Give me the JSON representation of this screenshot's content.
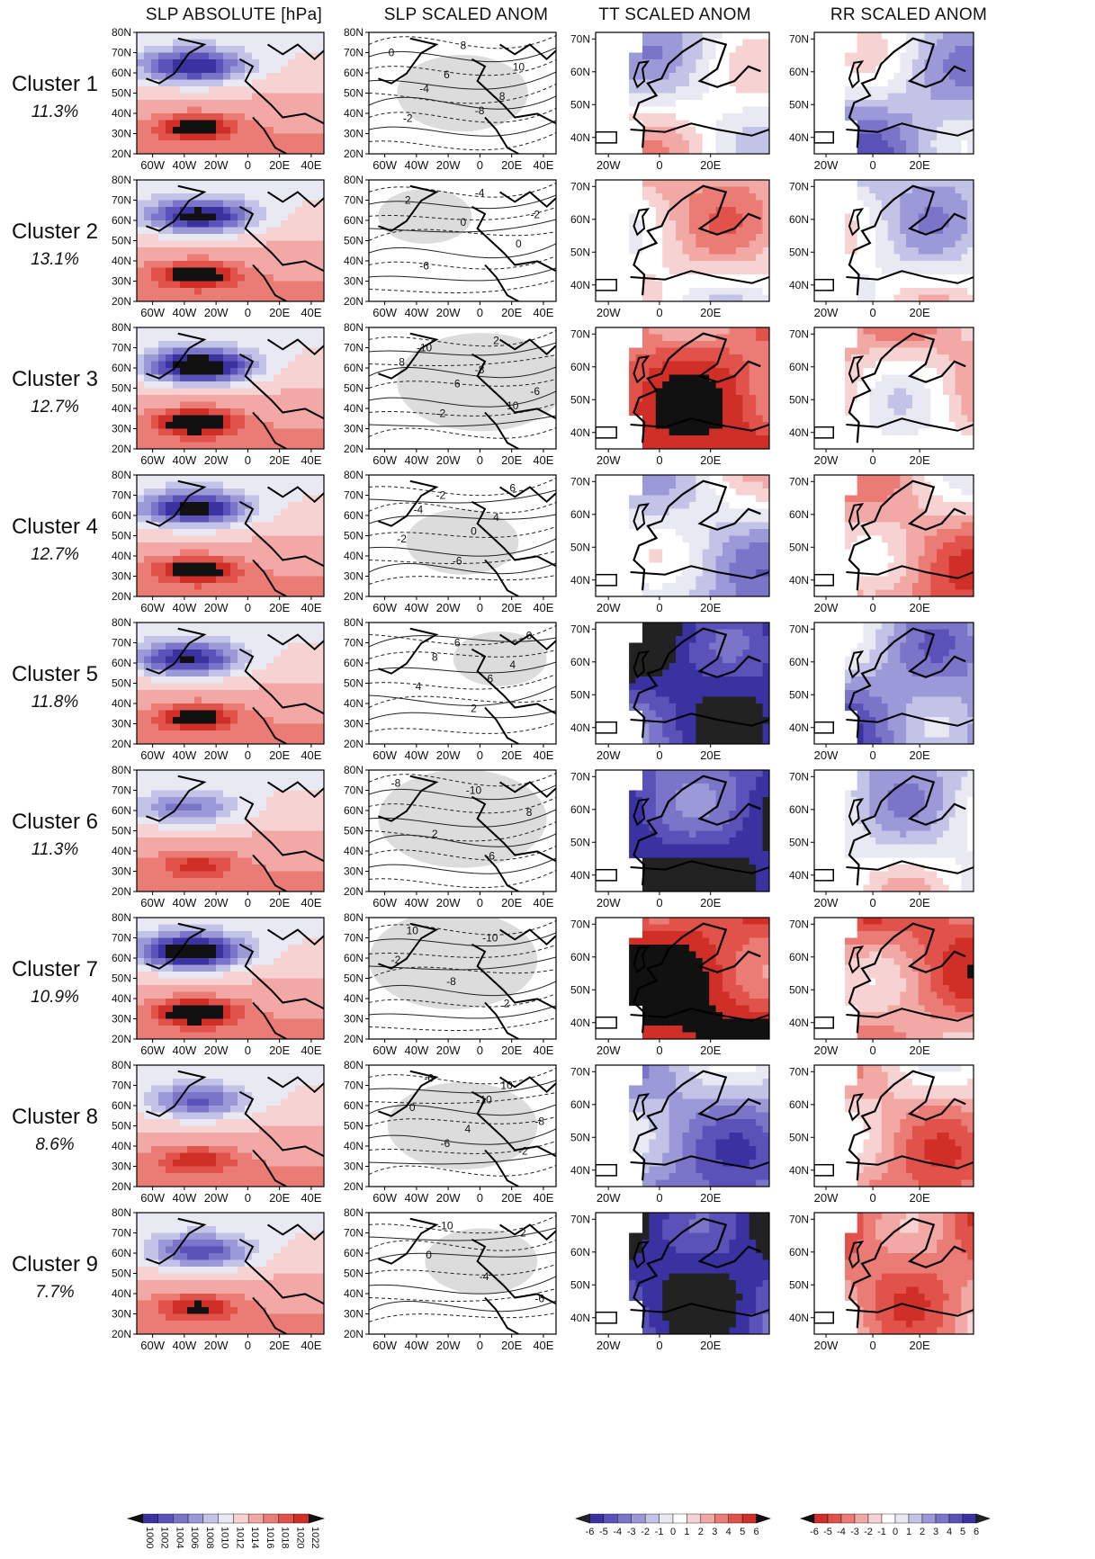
{
  "columns": [
    {
      "id": "slp",
      "header": "SLP ABSOLUTE [hPa]"
    },
    {
      "id": "slpa",
      "header": "SLP SCALED ANOM"
    },
    {
      "id": "tt",
      "header": "TT SCALED ANOM"
    },
    {
      "id": "rr",
      "header": "RR SCALED ANOM"
    }
  ],
  "clusters": [
    {
      "name": "Cluster 1",
      "freq": "11.3%"
    },
    {
      "name": "Cluster 2",
      "freq": "13.1%"
    },
    {
      "name": "Cluster 3",
      "freq": "12.7%"
    },
    {
      "name": "Cluster 4",
      "freq": "12.7%"
    },
    {
      "name": "Cluster 5",
      "freq": "11.8%"
    },
    {
      "name": "Cluster 6",
      "freq": "11.3%"
    },
    {
      "name": "Cluster 7",
      "freq": "10.9%"
    },
    {
      "name": "Cluster 8",
      "freq": "8.6%"
    },
    {
      "name": "Cluster 9",
      "freq": "7.7%"
    }
  ],
  "chart_data": [
    {
      "type": "heatmap",
      "panel": "slp",
      "xticks": [
        "60W",
        "40W",
        "20W",
        "0",
        "20E",
        "40E"
      ],
      "yticks": [
        "20N",
        "30N",
        "40N",
        "50N",
        "60N",
        "70N",
        "80N"
      ],
      "xlim": [
        -70,
        48
      ],
      "ylim": [
        20,
        80
      ],
      "colorbar": {
        "ticks": [
          "1000",
          "1002",
          "1004",
          "1006",
          "1008",
          "1010",
          "1012",
          "1014",
          "1016",
          "1018",
          "1020",
          "1022"
        ],
        "colors": [
          "#111111",
          "#3a32a0",
          "#5a52b8",
          "#7a75c8",
          "#9b99d8",
          "#c2c3e6",
          "#e9e9f3",
          "#f7d2d2",
          "#f2a9a6",
          "#ea7c75",
          "#e0524a",
          "#cf2f27",
          "#111111"
        ]
      }
    },
    {
      "type": "contour",
      "panel": "slpa",
      "xticks": [
        "60W",
        "40W",
        "20W",
        "0",
        "20E",
        "40E"
      ],
      "yticks": [
        "20N",
        "30N",
        "40N",
        "50N",
        "60N",
        "70N",
        "80N"
      ],
      "xlim": [
        -70,
        48
      ],
      "ylim": [
        20,
        80
      ],
      "labels": [
        [
          "0",
          "6",
          "8",
          "-2",
          "8",
          "10",
          "-4",
          "-8"
        ],
        [
          "2",
          "0",
          "0",
          "-6",
          "-4",
          "-2"
        ],
        [
          "-10",
          "-8",
          "-6",
          "-2",
          "2",
          "8",
          "6",
          "10"
        ],
        [
          "-2",
          "4",
          "-2",
          "-6",
          "6",
          "-4",
          "0"
        ],
        [
          "6",
          "4",
          "4",
          "2",
          "0",
          "8",
          "6"
        ],
        [
          "-10",
          "8",
          "2",
          "-6",
          "-8"
        ],
        [
          "-10",
          "-2",
          "-8",
          "2",
          "10"
        ],
        [
          "10",
          "0",
          "4",
          "-2",
          "-6",
          "-10",
          "-8",
          "-6"
        ],
        [
          "2",
          "0",
          "-4",
          "-6",
          "-10"
        ]
      ]
    },
    {
      "type": "heatmap",
      "panel": "tt",
      "xticks": [
        "20W",
        "0",
        "20E"
      ],
      "yticks": [
        "40N",
        "50N",
        "60N",
        "70N"
      ],
      "xlim": [
        -25,
        43
      ],
      "ylim": [
        35,
        72
      ],
      "values": [
        0.5,
        2,
        5,
        -0.5,
        -5,
        -5,
        6,
        -2,
        -5
      ],
      "colorbar": {
        "ticks": [
          "-6",
          "-5",
          "-4",
          "-3",
          "-2",
          "-1",
          "0",
          "1",
          "2",
          "3",
          "4",
          "5",
          "6"
        ],
        "colors": [
          "#222222",
          "#3a32a0",
          "#5a52b8",
          "#7a75c8",
          "#9b99d8",
          "#c2c3e6",
          "#e9e9f3",
          "#ffffff",
          "#f7d2d2",
          "#f2a9a6",
          "#ea7c75",
          "#e0524a",
          "#cf2f27",
          "#111111"
        ]
      }
    },
    {
      "type": "heatmap",
      "panel": "rr",
      "xticks": [
        "20W",
        "0",
        "20E"
      ],
      "yticks": [
        "40N",
        "50N",
        "60N",
        "70N"
      ],
      "xlim": [
        -25,
        43
      ],
      "ylim": [
        35,
        72
      ],
      "values": [
        2,
        1,
        -1,
        -2,
        3,
        1,
        -3,
        -2,
        -3
      ],
      "colorbar": {
        "ticks": [
          "-6",
          "-5",
          "-4",
          "-3",
          "-2",
          "-1",
          "0",
          "1",
          "2",
          "3",
          "4",
          "5",
          "6"
        ],
        "colors": [
          "#111111",
          "#cf2f27",
          "#e0524a",
          "#ea7c75",
          "#f2a9a6",
          "#f7d2d2",
          "#ffffff",
          "#e9e9f3",
          "#c2c3e6",
          "#9b99d8",
          "#7a75c8",
          "#5a52b8",
          "#3a32a0",
          "#222222"
        ]
      }
    }
  ]
}
